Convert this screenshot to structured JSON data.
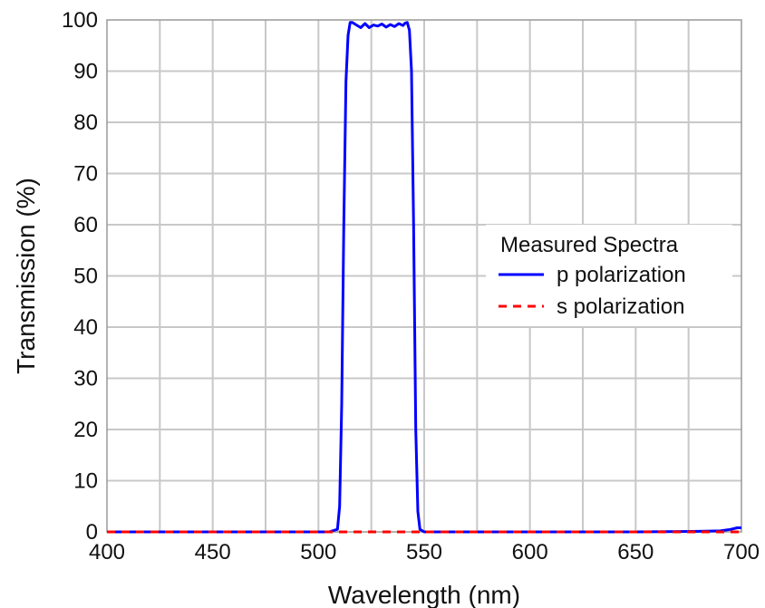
{
  "chart_data": {
    "type": "line",
    "title": "",
    "xlabel": "Wavelength (nm)",
    "ylabel": "Transmission (%)",
    "xlim": [
      400,
      700
    ],
    "ylim": [
      0,
      100
    ],
    "grid": true,
    "x_ticks": [
      400,
      450,
      500,
      550,
      600,
      650,
      700
    ],
    "y_ticks": [
      0,
      10,
      20,
      30,
      40,
      50,
      60,
      70,
      80,
      90,
      100
    ],
    "x_tick_labels": [
      "400",
      "450",
      "500",
      "550",
      "600",
      "650",
      "700"
    ],
    "y_tick_labels": [
      "0",
      "10",
      "20",
      "30",
      "40",
      "50",
      "60",
      "70",
      "80",
      "90",
      "100"
    ],
    "legend": {
      "title": "Measured Spectra",
      "placement": "right"
    },
    "series": [
      {
        "name": "p polarization",
        "color": "#0000ff",
        "style": "solid",
        "x": [
          400,
          505,
          509,
          510,
          511,
          512,
          513,
          514,
          515,
          516,
          518,
          520,
          522,
          524,
          526,
          528,
          530,
          532,
          534,
          536,
          538,
          540,
          541,
          542,
          543,
          544,
          545,
          546,
          547,
          548,
          550,
          600,
          650,
          680,
          690,
          695,
          698,
          700
        ],
        "y": [
          0,
          0,
          0.5,
          5,
          25,
          60,
          88,
          97,
          99.5,
          99.5,
          99,
          98.5,
          99.3,
          98.5,
          99,
          98.8,
          99.2,
          98.6,
          99.1,
          98.7,
          99.3,
          98.9,
          99.4,
          99.5,
          98,
          90,
          60,
          20,
          4,
          0.5,
          0,
          0,
          0,
          0.1,
          0.2,
          0.5,
          0.8,
          0.8
        ]
      },
      {
        "name": "s polarization",
        "color": "#ff0000",
        "style": "dashed",
        "x": [
          400,
          700
        ],
        "y": [
          0,
          0
        ]
      }
    ]
  }
}
